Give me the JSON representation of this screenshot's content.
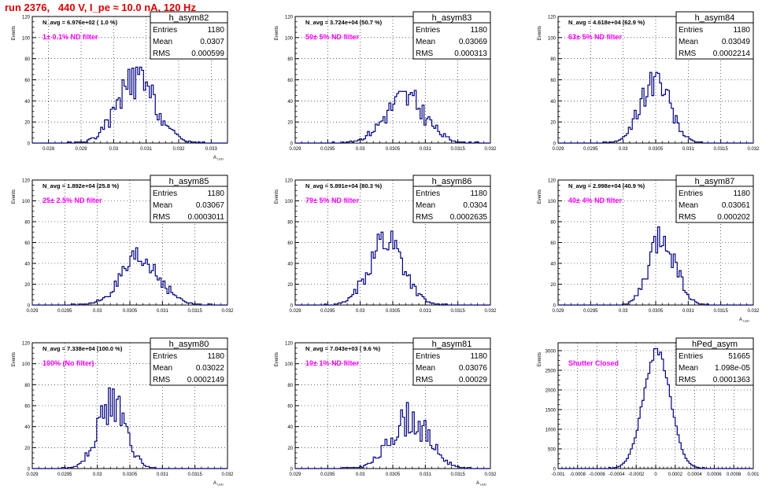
{
  "page": {
    "title": "run 2376,   440 V, I_pe ≈ 10.0 nA, 120 Hz"
  },
  "colors": {
    "histogram": "#000080",
    "annotation": "#ff00ff",
    "grid": "#000000",
    "title": "#e00000"
  },
  "chart_data": [
    {
      "type": "histogram",
      "name": "h_asym82",
      "ylabel": "Events",
      "xlabel": "A_{LED}",
      "xlim": [
        0.0275,
        0.0335
      ],
      "ylim": [
        0,
        120
      ],
      "xticks": [
        "0.028",
        "0.029",
        "0.03",
        "0.031",
        "0.032",
        "0.033"
      ],
      "xtick_values": [
        0.028,
        0.029,
        0.03,
        0.031,
        0.032,
        0.033
      ],
      "yticks": [
        "0",
        "20",
        "40",
        "60",
        "80",
        "100",
        "120"
      ],
      "navg": "N_avg = 6.976e+02 ( 1.0 %)",
      "filter": "1± 0.1% ND filter",
      "stats": [
        [
          "Entries",
          "1180"
        ],
        [
          "Mean",
          "0.0307"
        ],
        [
          "RMS",
          "0.000599"
        ]
      ],
      "dist": {
        "mean": 0.0307,
        "rms": 0.000599,
        "peak": 58,
        "jitter": 0.35,
        "seed": 82
      }
    },
    {
      "type": "histogram",
      "name": "h_asym83",
      "ylabel": "Events",
      "xlabel": "",
      "xlim": [
        0.029,
        0.032
      ],
      "ylim": [
        0,
        120
      ],
      "xticks": [
        "0.029",
        "0.0295",
        "0.03",
        "0.0305",
        "0.031",
        "0.0315",
        "0.032"
      ],
      "xtick_values": [
        0.029,
        0.0295,
        0.03,
        0.0305,
        0.031,
        0.0315,
        0.032
      ],
      "yticks": [
        "0",
        "20",
        "40",
        "60",
        "80",
        "100",
        "120"
      ],
      "navg": "N_avg = 3.724e+04 (50.7 %)",
      "filter": "50± 5% ND filter",
      "stats": [
        [
          "Entries",
          "1180"
        ],
        [
          "Mean",
          "0.03069"
        ],
        [
          "RMS",
          "0.000313"
        ]
      ],
      "dist": {
        "mean": 0.03069,
        "rms": 0.000313,
        "peak": 42,
        "jitter": 0.35,
        "seed": 83
      }
    },
    {
      "type": "histogram",
      "name": "h_asym84",
      "ylabel": "Events",
      "xlabel": "",
      "xlim": [
        0.029,
        0.032
      ],
      "ylim": [
        0,
        120
      ],
      "xticks": [
        "0.029",
        "0.0295",
        "0.03",
        "0.0305",
        "0.031",
        "0.0315",
        "0.032"
      ],
      "xtick_values": [
        0.029,
        0.0295,
        0.03,
        0.0305,
        0.031,
        0.0315,
        0.032
      ],
      "yticks": [
        "0",
        "20",
        "40",
        "60",
        "80",
        "100",
        "120"
      ],
      "navg": "N_avg = 4.618e+04 (62.9 %)",
      "filter": "63± 5% ND filter",
      "stats": [
        [
          "Entries",
          "1180"
        ],
        [
          "Mean",
          "0.03049"
        ],
        [
          "RMS",
          "0.0002214"
        ]
      ],
      "dist": {
        "mean": 0.03049,
        "rms": 0.0002214,
        "peak": 62,
        "jitter": 0.3,
        "seed": 84
      }
    },
    {
      "type": "histogram",
      "name": "h_asym85",
      "ylabel": "Events",
      "xlabel": "",
      "xlim": [
        0.029,
        0.032
      ],
      "ylim": [
        0,
        120
      ],
      "xticks": [
        "0.029",
        "0.0295",
        "0.03",
        "0.0305",
        "0.031",
        "0.0315",
        "0.032"
      ],
      "xtick_values": [
        0.029,
        0.0295,
        0.03,
        0.0305,
        0.031,
        0.0315,
        0.032
      ],
      "yticks": [
        "0",
        "20",
        "40",
        "60",
        "80",
        "100",
        "120"
      ],
      "navg": "N_avg = 1.892e+04 (25.8 %)",
      "filter": "25± 2.5% ND filter",
      "stats": [
        [
          "Entries",
          "1180"
        ],
        [
          "Mean",
          "0.03067"
        ],
        [
          "RMS",
          "0.0003011"
        ]
      ],
      "dist": {
        "mean": 0.03067,
        "rms": 0.0003011,
        "peak": 42,
        "jitter": 0.35,
        "seed": 85
      }
    },
    {
      "type": "histogram",
      "name": "h_asym86",
      "ylabel": "Events",
      "xlabel": "",
      "xlim": [
        0.029,
        0.032
      ],
      "ylim": [
        0,
        120
      ],
      "xticks": [
        "0.029",
        "0.0295",
        "0.03",
        "0.0305",
        "0.031",
        "0.0315",
        "0.032"
      ],
      "xtick_values": [
        0.029,
        0.0295,
        0.03,
        0.0305,
        0.031,
        0.0315,
        0.032
      ],
      "yticks": [
        "0",
        "20",
        "40",
        "60",
        "80",
        "100",
        "120"
      ],
      "navg": "N_avg = 5.891e+04 (80.3 %)",
      "filter": "79± 5% ND filter",
      "stats": [
        [
          "Entries",
          "1180"
        ],
        [
          "Mean",
          "0.0304"
        ],
        [
          "RMS",
          "0.0002635"
        ]
      ],
      "dist": {
        "mean": 0.0304,
        "rms": 0.0002635,
        "peak": 64,
        "jitter": 0.3,
        "seed": 86
      }
    },
    {
      "type": "histogram",
      "name": "h_asym87",
      "ylabel": "Events",
      "xlabel": "A_{LED}",
      "xlim": [
        0.029,
        0.032
      ],
      "ylim": [
        0,
        120
      ],
      "xticks": [
        "0.029",
        "0.0295",
        "0.03",
        "0.0305",
        "0.031",
        "0.0315",
        "0.032"
      ],
      "xtick_values": [
        0.029,
        0.0295,
        0.03,
        0.0305,
        0.031,
        0.0315,
        0.032
      ],
      "yticks": [
        "0",
        "20",
        "40",
        "60",
        "80",
        "100",
        "120"
      ],
      "navg": "N_avg = 2.998e+04 (40.9 %)",
      "filter": "40± 4% ND filter",
      "stats": [
        [
          "Entries",
          "1180"
        ],
        [
          "Mean",
          "0.03061"
        ],
        [
          "RMS",
          "0.000202"
        ]
      ],
      "dist": {
        "mean": 0.03061,
        "rms": 0.000202,
        "peak": 66,
        "jitter": 0.3,
        "seed": 87
      }
    },
    {
      "type": "histogram",
      "name": "h_asym80",
      "ylabel": "Events",
      "xlabel": "A_{LED}",
      "xlim": [
        0.029,
        0.032
      ],
      "ylim": [
        0,
        120
      ],
      "xticks": [
        "0.029",
        "0.0295",
        "0.03",
        "0.0305",
        "0.031",
        "0.0315",
        "0.032"
      ],
      "xtick_values": [
        0.029,
        0.0295,
        0.03,
        0.0305,
        0.031,
        0.0315,
        0.032
      ],
      "yticks": [
        "0",
        "20",
        "40",
        "60",
        "80",
        "100",
        "120"
      ],
      "navg": "N_avg = 7.338e+04 (100.0 %)",
      "filter": "100% (No filter)",
      "stats": [
        [
          "Entries",
          "1180"
        ],
        [
          "Mean",
          "0.03022"
        ],
        [
          "RMS",
          "0.0002149"
        ]
      ],
      "dist": {
        "mean": 0.03022,
        "rms": 0.0002149,
        "peak": 62,
        "jitter": 0.3,
        "seed": 80
      }
    },
    {
      "type": "histogram",
      "name": "h_asym81",
      "ylabel": "Events",
      "xlabel": "A_{LED}",
      "xlim": [
        0.029,
        0.032
      ],
      "ylim": [
        0,
        120
      ],
      "xticks": [
        "0.029",
        "0.0295",
        "0.03",
        "0.0305",
        "0.031",
        "0.0315",
        "0.032"
      ],
      "xtick_values": [
        0.029,
        0.0295,
        0.03,
        0.0305,
        0.031,
        0.0315,
        0.032
      ],
      "yticks": [
        "0",
        "20",
        "40",
        "60",
        "80",
        "100",
        "120"
      ],
      "navg": "N_avg = 7.043e+03 ( 9.6 %)",
      "filter": "10± 1% ND filter",
      "stats": [
        [
          "Entries",
          "1180"
        ],
        [
          "Mean",
          "0.03076"
        ],
        [
          "RMS",
          "0.00029"
        ]
      ],
      "dist": {
        "mean": 0.03076,
        "rms": 0.00029,
        "peak": 48,
        "jitter": 0.35,
        "seed": 81
      }
    },
    {
      "type": "histogram",
      "name": "hPed_asym",
      "ylabel": "Events",
      "xlabel": "",
      "xlim": [
        -0.001,
        0.001
      ],
      "ylim": [
        0,
        3200
      ],
      "xticks": [
        "-0.001",
        "-0.0008",
        "-0.0006",
        "-0.0004",
        "-0.0002",
        "0",
        "0.0002",
        "0.0004",
        "0.0006",
        "0.0008",
        "0.001"
      ],
      "xtick_values": [
        -0.001,
        -0.0008,
        -0.0006,
        -0.0004,
        -0.0002,
        0,
        0.0002,
        0.0004,
        0.0006,
        0.0008,
        0.001
      ],
      "yticks": [
        "0",
        "500",
        "1000",
        "1500",
        "2000",
        "2500",
        "3000"
      ],
      "ytick_values": [
        0,
        500,
        1000,
        1500,
        2000,
        2500,
        3000
      ],
      "navg": "",
      "filter": "Shutter Closed",
      "stats": [
        [
          "Entries",
          "51665"
        ],
        [
          "Mean",
          "1.098e-05"
        ],
        [
          "RMS",
          "0.0001363"
        ]
      ],
      "dist": {
        "mean": 1.098e-05,
        "rms": 0.0001363,
        "peak": 3020,
        "jitter": 0.05,
        "seed": 99
      }
    }
  ]
}
